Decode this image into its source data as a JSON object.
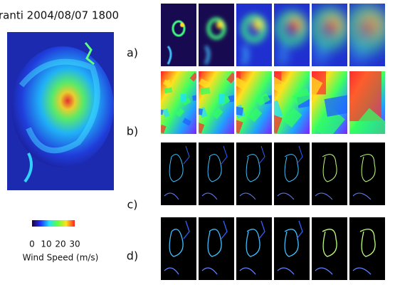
{
  "title": "ranti 2004/08/07 1800",
  "colorbar": {
    "ticks": [
      0,
      10,
      20,
      30
    ],
    "label": "Wind Speed (m/s)"
  },
  "rows": [
    {
      "label": "a)"
    },
    {
      "label": "b)"
    },
    {
      "label": "c)"
    },
    {
      "label": "d)"
    }
  ]
}
